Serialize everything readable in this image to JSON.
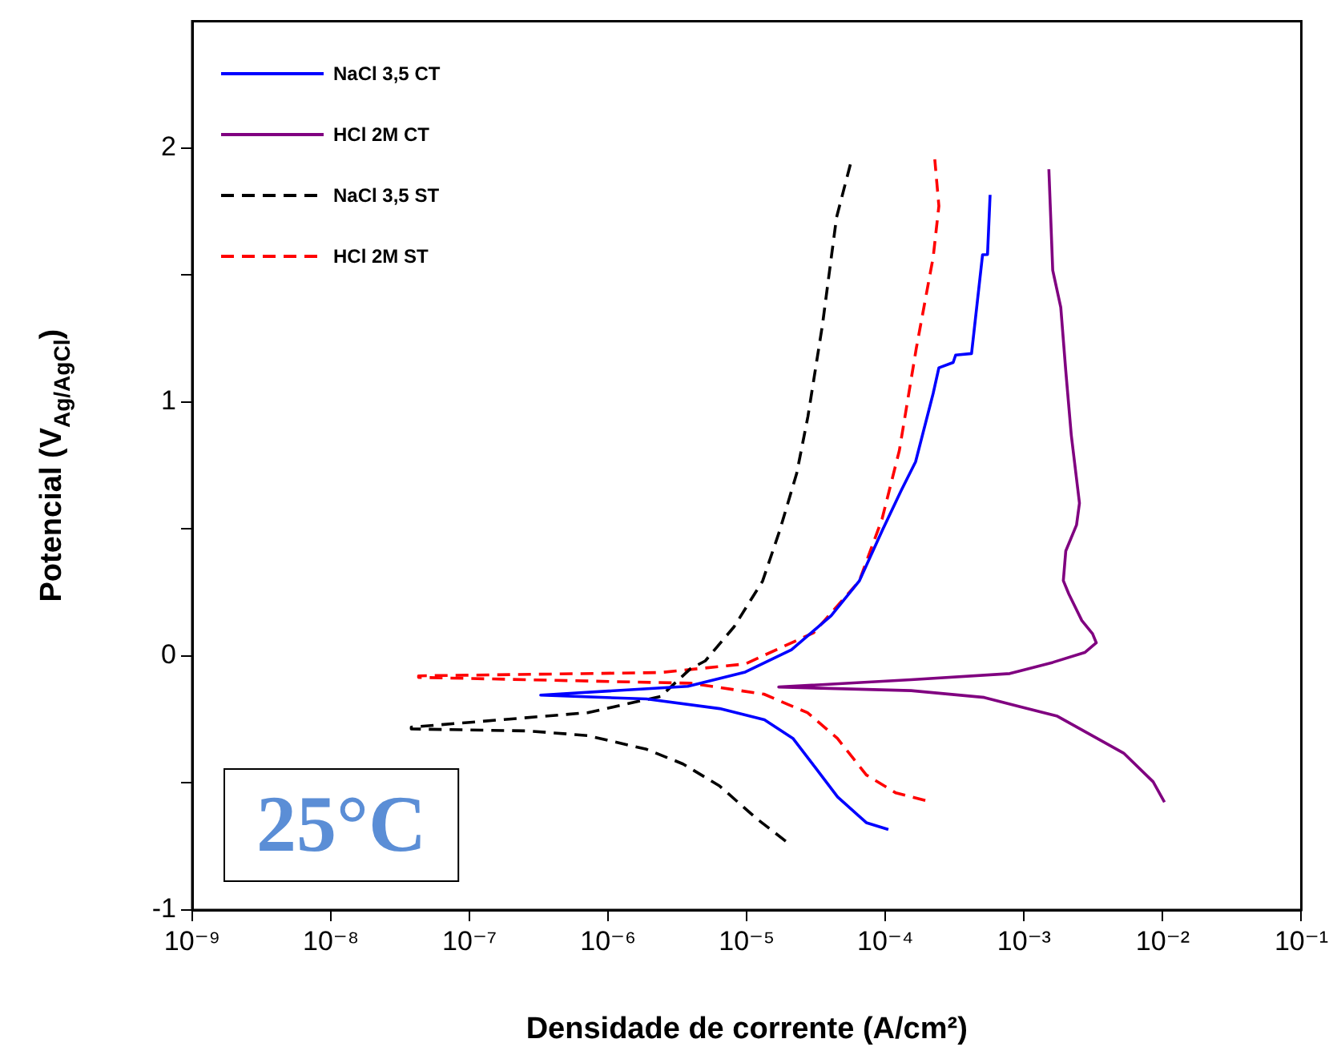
{
  "chart_data": {
    "type": "line",
    "xlabel": "Densidade de corrente (A/cm²)",
    "ylabel": "Potencial (V$_{Ag/AgCl}$)",
    "log": "x",
    "xlim": [
      1e-09,
      0.1
    ],
    "ylim": [
      -1,
      2.5
    ],
    "xticks": [
      {
        "value": 1e-09,
        "label": "10⁻⁹"
      },
      {
        "value": 1e-08,
        "label": "10⁻⁸"
      },
      {
        "value": 1e-07,
        "label": "10⁻⁷"
      },
      {
        "value": 1e-06,
        "label": "10⁻⁶"
      },
      {
        "value": 1e-05,
        "label": "10⁻⁵"
      },
      {
        "value": 0.0001,
        "label": "10⁻⁴"
      },
      {
        "value": 0.001,
        "label": "10⁻³"
      },
      {
        "value": 0.01,
        "label": "10⁻²"
      },
      {
        "value": 0.1,
        "label": "10⁻¹"
      }
    ],
    "yticks": [
      -1,
      {
        "value": -0.5,
        "label": null
      },
      0,
      {
        "value": 0.5,
        "label": null
      },
      1,
      {
        "value": 1.5,
        "label": null
      },
      2
    ],
    "grid": false,
    "legend": "top left",
    "marker": "none",
    "annotations": [
      "25°C"
    ],
    "series": [
      {
        "name": "NaCl 3,5 CT",
        "color": "#0000ff",
        "line_style": "solid",
        "x": [
          0.000105,
          7.28e-05,
          4.52e-05,
          3.12e-05,
          2.15e-05,
          1.34e-05,
          6.38e-06,
          1.89e-06,
          3.26e-07,
          3.76e-06,
          9.75e-06,
          2.1e-05,
          4.06e-05,
          6.47e-05,
          9.5e-05,
          0.00013,
          0.000165,
          0.000221,
          0.000243,
          0.000308,
          0.000321,
          0.000418,
          0.000502,
          0.000545,
          0.000569
        ],
        "values": [
          -0.683,
          -0.656,
          -0.555,
          -0.439,
          -0.324,
          -0.251,
          -0.207,
          -0.169,
          -0.154,
          -0.119,
          -0.063,
          0.025,
          0.159,
          0.295,
          0.495,
          0.652,
          0.765,
          1.034,
          1.135,
          1.156,
          1.185,
          1.191,
          1.58,
          1.581,
          1.816
        ]
      },
      {
        "name": "HCl 2M CT",
        "color": "#800080",
        "line_style": "solid",
        "x": [
          0.0103,
          0.00853,
          0.00522,
          0.00174,
          0.000516,
          0.000153,
          1.7e-05,
          0.000153,
          0.000789,
          0.00161,
          0.00274,
          0.00332,
          0.00312,
          0.00261,
          0.0021,
          0.00192,
          0.002,
          0.00239,
          0.00251,
          0.00219,
          0.002,
          0.00184,
          0.00161,
          0.00151
        ],
        "values": [
          -0.575,
          -0.495,
          -0.382,
          -0.237,
          -0.163,
          -0.136,
          -0.122,
          -0.093,
          -0.069,
          -0.025,
          0.014,
          0.052,
          0.088,
          0.14,
          0.245,
          0.297,
          0.414,
          0.516,
          0.602,
          0.871,
          1.122,
          1.373,
          1.519,
          1.917
        ]
      },
      {
        "name": "NaCl 3,5 ST",
        "color": "#000000",
        "line_style": "dashed",
        "x": [
          1.91e-05,
          1.17e-05,
          6.38e-06,
          3.47e-06,
          1.89e-06,
          7.1e-07,
          2.66e-07,
          3.8e-08,
          3.8e-08,
          7.1e-07,
          2.39e-06,
          3.92e-06,
          5.02e-06,
          8.09e-06,
          1.3e-05,
          1.73e-05,
          2.29e-05,
          2.76e-05,
          3.51e-05,
          4.44e-05,
          5.71e-05
        ],
        "values": [
          -0.729,
          -0.639,
          -0.512,
          -0.425,
          -0.367,
          -0.313,
          -0.295,
          -0.287,
          -0.28,
          -0.223,
          -0.159,
          -0.05,
          -0.019,
          0.115,
          0.295,
          0.495,
          0.719,
          0.943,
          1.302,
          1.727,
          1.956
        ]
      },
      {
        "name": "HCl 2M ST",
        "color": "#ff0000",
        "line_style": "dashed",
        "x": [
          0.000194,
          0.000119,
          7.28e-05,
          4.5e-05,
          2.74e-05,
          1.33e-05,
          3.92e-06,
          4.29e-08,
          4.29e-08,
          2.37e-06,
          9.75e-06,
          3.04e-05,
          6.47e-05,
          9.46e-05,
          0.000126,
          0.000167,
          0.000221,
          0.000243,
          0.000227
        ],
        "values": [
          -0.569,
          -0.539,
          -0.468,
          -0.324,
          -0.223,
          -0.15,
          -0.107,
          -0.084,
          -0.078,
          -0.065,
          -0.031,
          0.092,
          0.295,
          0.54,
          0.809,
          1.212,
          1.57,
          1.772,
          1.956
        ]
      }
    ]
  }
}
